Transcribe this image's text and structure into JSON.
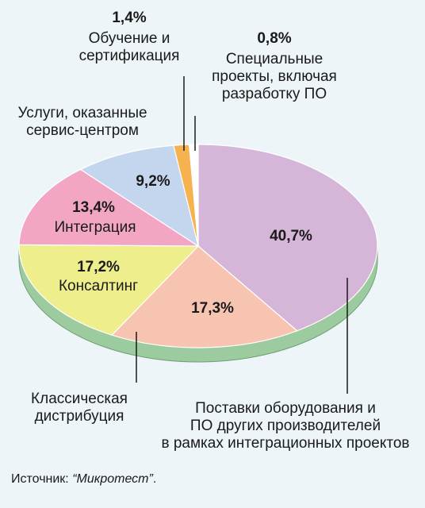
{
  "chart_data": {
    "type": "pie",
    "title": "",
    "slices": [
      {
        "label": "Поставки оборудования и ПО других производителей в рамках интеграционных проектов",
        "label_lines": [
          "Поставки оборудования и",
          "ПО других производителей",
          "в рамках интеграционных проектов"
        ],
        "value": 40.7,
        "value_text": "40,7%",
        "color": "#d5b5d8"
      },
      {
        "label": "Классическая дистрибуция",
        "label_lines": [
          "Классическая",
          "дистрибуция"
        ],
        "value": 17.3,
        "value_text": "17,3%",
        "color": "#f8c4b2"
      },
      {
        "label": "Консалтинг",
        "label_lines": [
          "Консалтинг"
        ],
        "value": 17.2,
        "value_text": "17,2%",
        "color": "#eeee8c"
      },
      {
        "label": "Интеграция",
        "label_lines": [
          "Интеграция"
        ],
        "value": 13.4,
        "value_text": "13,4%",
        "color": "#f3a6c4"
      },
      {
        "label": "Услуги, оказанные сервис-центром",
        "label_lines": [
          "Услуги, оказанные",
          "сервис-центром"
        ],
        "value": 9.2,
        "value_text": "9,2%",
        "color": "#c4d5ee"
      },
      {
        "label": "Обучение и сертификация",
        "label_lines": [
          "Обучение и",
          "сертификация"
        ],
        "value": 1.4,
        "value_text": "1,4%",
        "color": "#f6b24e"
      },
      {
        "label": "Специальные проекты, включая разработку ПО",
        "label_lines": [
          "Специальные",
          "проекты, включая",
          "разработку ПО"
        ],
        "value": 0.8,
        "value_text": "0,8%",
        "color": "#ffffff"
      }
    ],
    "side_color": "#9bcb9e"
  },
  "source": {
    "prefix": "Источник: ",
    "name": "“Микротест”",
    "suffix": "."
  }
}
